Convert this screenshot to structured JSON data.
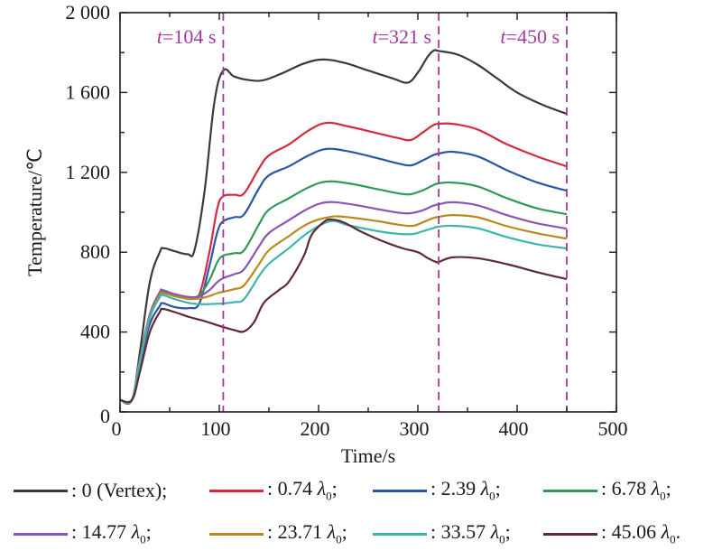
{
  "chart_data": {
    "type": "line",
    "title": "",
    "xlabel": "Time/s",
    "ylabel": "Temperature/℃",
    "xlim": [
      0,
      500
    ],
    "ylim": [
      0,
      2000
    ],
    "xticks": [
      0,
      100,
      200,
      300,
      400,
      500
    ],
    "xtick_labels": [
      "0",
      "100",
      "200",
      "300",
      "400",
      "500"
    ],
    "yticks": [
      0,
      400,
      800,
      1200,
      1600,
      2000
    ],
    "ytick_labels": [
      "0",
      "400",
      "800",
      "1 200",
      "1 600",
      "2 000"
    ],
    "grid": false,
    "legend_position": "bottom",
    "annotations": [
      {
        "x": 104,
        "label_italic": "t",
        "label_rest": "=104 s",
        "color": "#a3399c"
      },
      {
        "x": 321,
        "label_italic": "t",
        "label_rest": "=321 s",
        "color": "#a3399c"
      },
      {
        "x": 450,
        "label_italic": "t",
        "label_rest": "=450 s",
        "color": "#a3399c"
      }
    ],
    "series": [
      {
        "name": ": 0 (Vertex);",
        "label_main": ": 0 (Vertex);",
        "lambda": false,
        "color": "#3a3a3a",
        "x": [
          0,
          12,
          20,
          30,
          40,
          44,
          55,
          68,
          75,
          85,
          95,
          104,
          115,
          130,
          145,
          165,
          185,
          204,
          225,
          250,
          275,
          290,
          300,
          310,
          316,
          321,
          340,
          360,
          380,
          400,
          425,
          450
        ],
        "y": [
          60,
          60,
          300,
          650,
          800,
          820,
          805,
          790,
          810,
          1100,
          1550,
          1710,
          1680,
          1662,
          1662,
          1700,
          1745,
          1765,
          1750,
          1710,
          1670,
          1650,
          1700,
          1780,
          1810,
          1808,
          1790,
          1740,
          1670,
          1600,
          1540,
          1493
        ]
      },
      {
        "name": "0.74 λ0",
        "label_main": ": 0.74 ",
        "lambda": true,
        "lambda_end": ";",
        "color": "#d42a3c",
        "x": [
          0,
          12,
          20,
          30,
          40,
          43,
          55,
          70,
          80,
          90,
          98,
          104,
          115,
          125,
          140,
          150,
          170,
          190,
          208,
          230,
          260,
          280,
          293,
          305,
          315,
          321,
          335,
          360,
          390,
          420,
          450
        ],
        "y": [
          60,
          60,
          260,
          480,
          590,
          600,
          580,
          570,
          590,
          800,
          1020,
          1080,
          1088,
          1095,
          1220,
          1285,
          1340,
          1410,
          1448,
          1430,
          1395,
          1372,
          1362,
          1400,
          1435,
          1443,
          1443,
          1415,
          1340,
          1280,
          1230
        ]
      },
      {
        "name": "2.39 λ0",
        "label_main": ": 2.39 ",
        "lambda": true,
        "lambda_end": ";",
        "color": "#2b56a6",
        "x": [
          0,
          12,
          20,
          30,
          40,
          43,
          55,
          70,
          80,
          90,
          98,
          104,
          115,
          125,
          140,
          150,
          170,
          190,
          208,
          230,
          260,
          280,
          293,
          305,
          315,
          321,
          335,
          360,
          390,
          420,
          450
        ],
        "y": [
          60,
          60,
          240,
          440,
          530,
          545,
          525,
          520,
          545,
          730,
          900,
          955,
          975,
          990,
          1120,
          1185,
          1230,
          1285,
          1317,
          1305,
          1270,
          1245,
          1235,
          1260,
          1285,
          1294,
          1303,
          1280,
          1210,
          1150,
          1108
        ]
      },
      {
        "name": "6.78 λ0",
        "label_main": ": 6.78 ",
        "lambda": true,
        "lambda_end": ";",
        "color": "#2e9a5a",
        "x": [
          0,
          12,
          20,
          30,
          40,
          43,
          55,
          70,
          80,
          90,
          98,
          104,
          115,
          125,
          140,
          150,
          170,
          190,
          208,
          230,
          260,
          280,
          292,
          305,
          315,
          321,
          335,
          360,
          390,
          420,
          450
        ],
        "y": [
          60,
          60,
          260,
          480,
          590,
          600,
          585,
          570,
          585,
          660,
          750,
          783,
          795,
          810,
          940,
          1013,
          1070,
          1125,
          1154,
          1145,
          1115,
          1095,
          1090,
          1110,
          1135,
          1145,
          1149,
          1130,
          1070,
          1020,
          990
        ]
      },
      {
        "name": "14.77 λ0",
        "label_main": ": 14.77 ",
        "lambda": true,
        "lambda_end": ";",
        "color": "#8a55b3",
        "x": [
          0,
          12,
          20,
          30,
          40,
          43,
          55,
          70,
          80,
          90,
          98,
          104,
          115,
          125,
          140,
          150,
          170,
          190,
          208,
          230,
          260,
          280,
          292,
          305,
          315,
          321,
          335,
          360,
          390,
          420,
          450
        ],
        "y": [
          60,
          60,
          265,
          490,
          600,
          610,
          590,
          575,
          580,
          610,
          650,
          670,
          690,
          715,
          830,
          896,
          960,
          1020,
          1050,
          1042,
          1015,
          998,
          995,
          1010,
          1032,
          1040,
          1050,
          1035,
          985,
          945,
          918
        ]
      },
      {
        "name": "23.71 λ0",
        "label_main": ": 23.71 ",
        "lambda": true,
        "lambda_end": ";",
        "color": "#b88a1e",
        "x": [
          0,
          12,
          20,
          30,
          40,
          43,
          55,
          70,
          80,
          90,
          98,
          104,
          115,
          125,
          140,
          150,
          170,
          190,
          212,
          230,
          260,
          280,
          295,
          305,
          315,
          321,
          335,
          360,
          390,
          420,
          450
        ],
        "y": [
          60,
          60,
          255,
          480,
          585,
          595,
          580,
          565,
          568,
          580,
          595,
          602,
          615,
          635,
          740,
          810,
          880,
          945,
          977,
          975,
          955,
          938,
          932,
          950,
          970,
          977,
          986,
          975,
          930,
          895,
          868
        ]
      },
      {
        "name": "33.57 λ0",
        "label_main": ": 33.57 ",
        "lambda": true,
        "lambda_end": ";",
        "color": "#3fb3ad",
        "x": [
          0,
          12,
          20,
          30,
          40,
          43,
          55,
          70,
          80,
          90,
          98,
          104,
          115,
          125,
          140,
          150,
          170,
          190,
          212,
          230,
          260,
          280,
          295,
          305,
          315,
          321,
          335,
          360,
          390,
          420,
          450
        ],
        "y": [
          60,
          60,
          250,
          470,
          575,
          585,
          565,
          545,
          540,
          540,
          542,
          543,
          550,
          565,
          680,
          742,
          820,
          900,
          955,
          935,
          905,
          892,
          891,
          905,
          920,
          928,
          932,
          920,
          875,
          840,
          819
        ]
      },
      {
        "name": "45.06 λ0",
        "label_main": ": 45.06 ",
        "lambda": true,
        "lambda_end": ".",
        "color": "#5e2a33",
        "x": [
          0,
          12,
          20,
          30,
          40,
          43,
          55,
          70,
          85,
          104,
          115,
          125,
          135,
          145,
          160,
          170,
          185,
          193,
          205,
          212,
          225,
          240,
          255,
          270,
          285,
          300,
          310,
          318,
          321,
          335,
          360,
          390,
          420,
          450
        ],
        "y": [
          60,
          60,
          200,
          400,
          500,
          516,
          500,
          475,
          455,
          425,
          410,
          403,
          450,
          547,
          610,
          652,
          780,
          887,
          950,
          964,
          950,
          910,
          875,
          845,
          819,
          800,
          770,
          752,
          751,
          774,
          770,
          740,
          700,
          665
        ]
      }
    ]
  }
}
